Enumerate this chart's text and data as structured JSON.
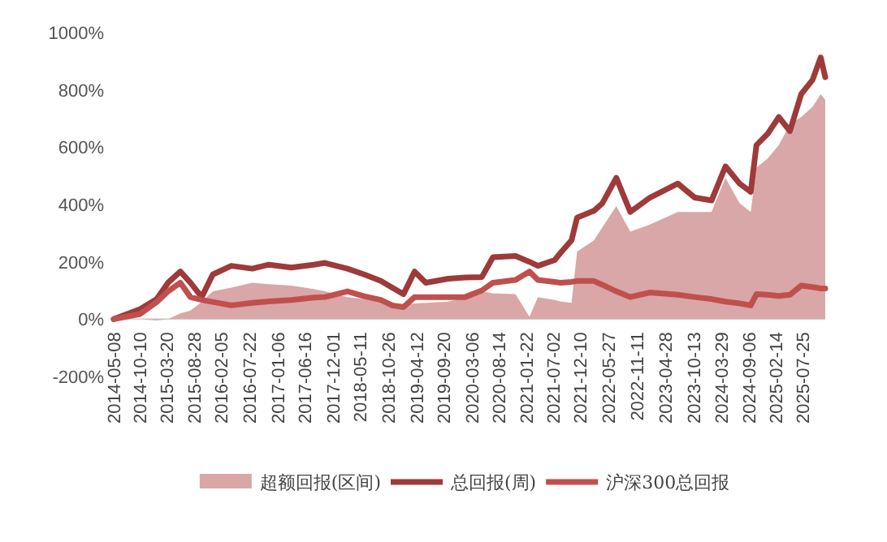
{
  "chart_data": {
    "type": "line",
    "x": [
      "2014-05-08",
      "2014-10-12",
      "2015-01-19",
      "2015-03-27",
      "2015-06-08",
      "2015-08-07",
      "2015-10-13",
      "2015-12-18",
      "2016-04-06",
      "2016-08-08",
      "2016-11-15",
      "2017-03-29",
      "2017-08-09",
      "2017-10-14",
      "2018-02-25",
      "2018-06-05",
      "2018-09-12",
      "2018-11-18",
      "2019-01-24",
      "2019-03-31",
      "2019-06-06",
      "2019-10-17",
      "2020-01-25",
      "2020-05-04",
      "2020-07-09",
      "2020-11-20",
      "2021-02-11",
      "2021-04-02",
      "2021-07-11",
      "2021-08-13",
      "2021-10-19",
      "2021-11-21",
      "2022-03-01",
      "2022-04-20",
      "2022-07-12",
      "2022-10-03",
      "2023-01-28",
      "2023-07-13",
      "2023-10-21",
      "2024-01-29",
      "2024-04-21",
      "2024-07-14",
      "2024-09-18",
      "2024-10-22",
      "2024-12-27",
      "2025-03-04",
      "2025-05-09",
      "2025-07-15",
      "2025-09-20",
      "2025-11-08",
      "2025-12-05"
    ],
    "series": [
      {
        "name": "超额回报(区间)",
        "type": "area",
        "color": "#d9a7a7",
        "values": [
          0,
          0,
          -5,
          0,
          20,
          30,
          60,
          97,
          110,
          127,
          122,
          117,
          105,
          97,
          77,
          70,
          62,
          57,
          48,
          55,
          57,
          61,
          75,
          97,
          90,
          87,
          8,
          77,
          67,
          62,
          57,
          236,
          275,
          320,
          394,
          305,
          330,
          374,
          374,
          374,
          493,
          404,
          374,
          529,
          560,
          607,
          680,
          705,
          740,
          785,
          765
        ]
      },
      {
        "name": "总回报(周)",
        "color": "#9e3a3a",
        "values": [
          0,
          35,
          70,
          127,
          166,
          127,
          77,
          156,
          186,
          176,
          190,
          180,
          190,
          196,
          176,
          156,
          133,
          110,
          87,
          166,
          127,
          141,
          145,
          147,
          216,
          220,
          200,
          186,
          206,
          230,
          275,
          354,
          378,
          404,
          493,
          374,
          424,
          473,
          424,
          414,
          533,
          473,
          444,
          607,
          646,
          705,
          656,
          785,
          834,
          913,
          844
        ]
      },
      {
        "name": "沪深300总回报",
        "color": "#c0504d",
        "values": [
          0,
          18,
          60,
          97,
          127,
          77,
          67,
          60,
          48,
          57,
          62,
          67,
          75,
          77,
          97,
          80,
          67,
          48,
          42,
          77,
          77,
          77,
          77,
          100,
          127,
          137,
          166,
          137,
          130,
          127,
          130,
          133,
          133,
          120,
          97,
          77,
          93,
          85,
          77,
          70,
          61,
          55,
          48,
          87,
          85,
          81,
          85,
          117,
          112,
          107,
          107
        ]
      }
    ],
    "xticks": [
      "2014-05-08",
      "2014-10-10",
      "2015-03-20",
      "2015-08-28",
      "2016-02-05",
      "2016-07-22",
      "2017-01-06",
      "2017-06-16",
      "2017-12-01",
      "2018-05-11",
      "2018-10-26",
      "2019-04-12",
      "2019-09-20",
      "2020-03-06",
      "2020-08-14",
      "2021-01-22",
      "2021-07-02",
      "2021-12-10",
      "2022-05-27",
      "2022-11-11",
      "2023-04-28",
      "2023-10-13",
      "2024-03-29",
      "2024-09-06",
      "2025-02-14",
      "2025-07-25"
    ],
    "xlim": [
      "2014-05-08",
      "2025-12-05"
    ],
    "ylim": [
      -200,
      1000
    ],
    "yticks": [
      {
        "value": -200,
        "label": "-200%"
      },
      {
        "value": 0,
        "label": "0%"
      },
      {
        "value": 200,
        "label": "200%"
      },
      {
        "value": 400,
        "label": "400%"
      },
      {
        "value": 600,
        "label": "600%"
      },
      {
        "value": 800,
        "label": "800%"
      },
      {
        "value": 1000,
        "label": "1000%"
      }
    ],
    "grid": false,
    "legend": "bottom"
  }
}
